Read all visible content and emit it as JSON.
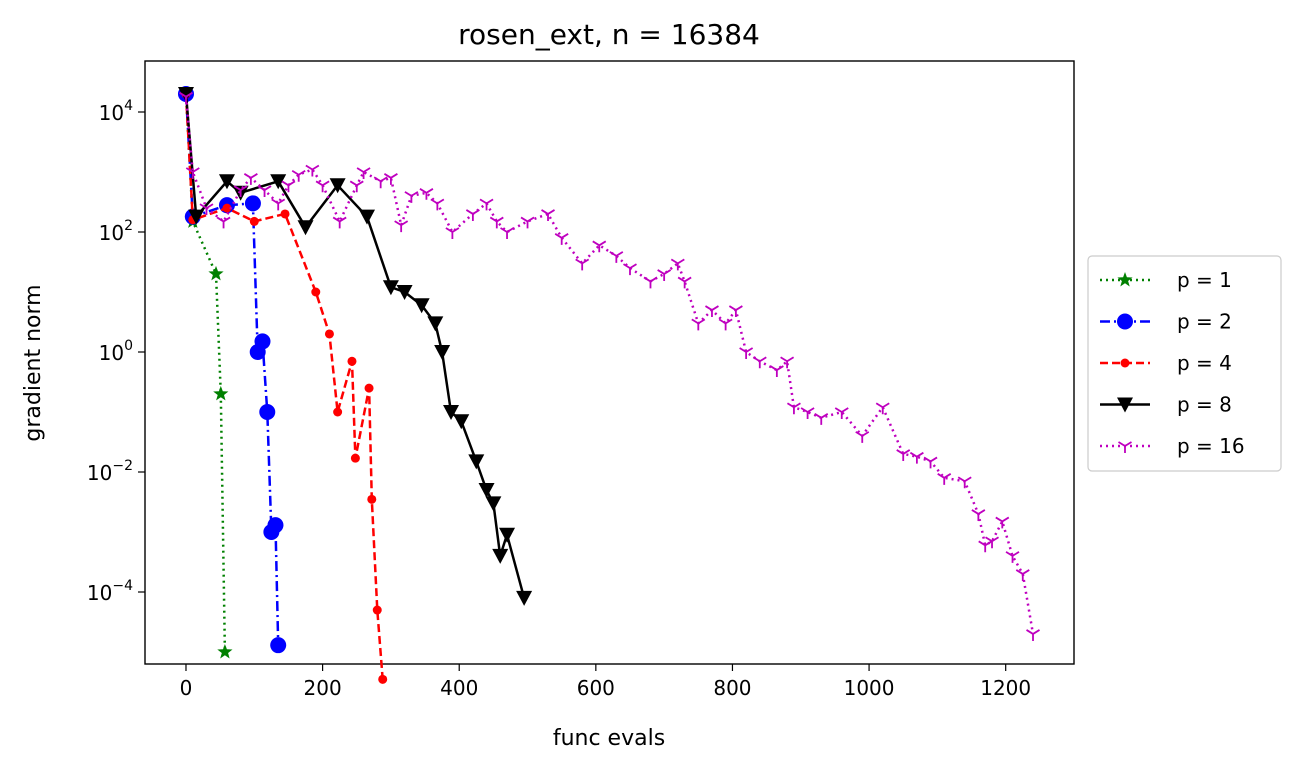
{
  "chart_data": {
    "type": "line",
    "title": "rosen_ext, n = 16384",
    "xlabel": "func evals",
    "ylabel": "gradient norm",
    "yscale": "log",
    "xlim": [
      -60,
      1300
    ],
    "ylim_log10": [
      -5.2,
      4.85
    ],
    "xticks": [
      0,
      200,
      400,
      600,
      800,
      1000,
      1200
    ],
    "xtick_labels": [
      "0",
      "200",
      "400",
      "600",
      "800",
      "1000",
      "1200"
    ],
    "yticks_exp": [
      4,
      2,
      0,
      -2,
      -4
    ],
    "ytick_base": "10",
    "ytick_exponents": [
      "4",
      "2",
      "0",
      "−2",
      "−4"
    ],
    "legend_position": "outside-right",
    "grid": false,
    "series": [
      {
        "name": "p = 1",
        "color": "#008000",
        "dash": "2,4",
        "marker": "star",
        "points": [
          [
            0,
            20000
          ],
          [
            10,
            150
          ],
          [
            44,
            20
          ],
          [
            51,
            0.2
          ],
          [
            57,
            1e-05
          ]
        ]
      },
      {
        "name": "p = 2",
        "color": "#0000ff",
        "dash": "10,4,2,4",
        "marker": "circle",
        "points": [
          [
            0,
            20000
          ],
          [
            10,
            180
          ],
          [
            60,
            280
          ],
          [
            98,
            300
          ],
          [
            105,
            1
          ],
          [
            112,
            1.5
          ],
          [
            119,
            0.1
          ],
          [
            125,
            0.001
          ],
          [
            131,
            0.0013
          ],
          [
            135,
            1.3e-05
          ]
        ]
      },
      {
        "name": "p = 4",
        "color": "#ff0000",
        "dash": "8,4",
        "marker": "dot",
        "points": [
          [
            0,
            20000
          ],
          [
            10,
            160
          ],
          [
            60,
            250
          ],
          [
            100,
            150
          ],
          [
            145,
            200
          ],
          [
            190,
            10
          ],
          [
            210,
            2
          ],
          [
            222,
            0.1
          ],
          [
            243,
            0.7
          ],
          [
            248,
            0.017
          ],
          [
            268,
            0.25
          ],
          [
            272,
            0.0035
          ],
          [
            280,
            5e-05
          ],
          [
            288,
            3.5e-06
          ]
        ]
      },
      {
        "name": "p = 8",
        "color": "#000000",
        "dash": "",
        "marker": "triangle-down",
        "points": [
          [
            0,
            20000
          ],
          [
            15,
            180
          ],
          [
            60,
            700
          ],
          [
            80,
            450
          ],
          [
            135,
            700
          ],
          [
            175,
            120
          ],
          [
            222,
            600
          ],
          [
            265,
            180
          ],
          [
            300,
            12
          ],
          [
            320,
            10
          ],
          [
            345,
            6
          ],
          [
            365,
            3
          ],
          [
            375,
            1
          ],
          [
            388,
            0.1
          ],
          [
            403,
            0.07
          ],
          [
            425,
            0.015
          ],
          [
            440,
            0.005
          ],
          [
            450,
            0.003
          ],
          [
            460,
            0.0004
          ],
          [
            470,
            0.0009
          ],
          [
            495,
            8e-05
          ]
        ]
      },
      {
        "name": "p = 16",
        "color": "#bf00bf",
        "dash": "2,4",
        "marker": "tri-down",
        "points": [
          [
            0,
            18000
          ],
          [
            10,
            1000
          ],
          [
            30,
            250
          ],
          [
            55,
            150
          ],
          [
            80,
            500
          ],
          [
            95,
            800
          ],
          [
            115,
            500
          ],
          [
            135,
            300
          ],
          [
            150,
            600
          ],
          [
            165,
            900
          ],
          [
            185,
            1100
          ],
          [
            200,
            600
          ],
          [
            225,
            150
          ],
          [
            250,
            600
          ],
          [
            260,
            1000
          ],
          [
            285,
            700
          ],
          [
            300,
            800
          ],
          [
            315,
            130
          ],
          [
            330,
            400
          ],
          [
            352,
            450
          ],
          [
            368,
            300
          ],
          [
            390,
            100
          ],
          [
            420,
            200
          ],
          [
            440,
            300
          ],
          [
            455,
            150
          ],
          [
            470,
            100
          ],
          [
            500,
            150
          ],
          [
            530,
            200
          ],
          [
            550,
            80
          ],
          [
            580,
            30
          ],
          [
            605,
            60
          ],
          [
            630,
            40
          ],
          [
            650,
            25
          ],
          [
            680,
            15
          ],
          [
            700,
            20
          ],
          [
            720,
            30
          ],
          [
            730,
            15
          ],
          [
            750,
            3
          ],
          [
            770,
            5
          ],
          [
            790,
            3
          ],
          [
            805,
            5
          ],
          [
            820,
            1
          ],
          [
            840,
            0.7
          ],
          [
            865,
            0.5
          ],
          [
            880,
            0.7
          ],
          [
            890,
            0.12
          ],
          [
            910,
            0.1
          ],
          [
            930,
            0.08
          ],
          [
            960,
            0.1
          ],
          [
            990,
            0.04
          ],
          [
            1020,
            0.12
          ],
          [
            1050,
            0.02
          ],
          [
            1070,
            0.018
          ],
          [
            1090,
            0.015
          ],
          [
            1110,
            0.008
          ],
          [
            1140,
            0.007
          ],
          [
            1160,
            0.002
          ],
          [
            1170,
            0.0006
          ],
          [
            1180,
            0.0007
          ],
          [
            1195,
            0.0015
          ],
          [
            1210,
            0.0004
          ],
          [
            1225,
            0.0002
          ],
          [
            1240,
            2e-05
          ]
        ]
      }
    ]
  }
}
